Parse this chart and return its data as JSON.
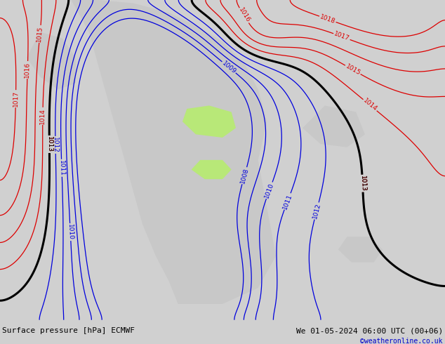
{
  "title_bottom_left": "Surface pressure [hPa] ECMWF",
  "title_bottom_right": "We 01-05-2024 06:00 UTC (00+06)",
  "copyright": "©weatheronline.co.uk",
  "bg_color_land": "#b8e878",
  "bg_color_gray": "#c8c8c8",
  "contour_color_blue": "#0000dd",
  "contour_color_red": "#dd0000",
  "contour_color_black": "#000000",
  "bottom_bar_color": "#d0d0d0",
  "bottom_text_color": "#000000",
  "copyright_color": "#0000cc",
  "figsize": [
    6.34,
    4.9
  ],
  "dpi": 100
}
